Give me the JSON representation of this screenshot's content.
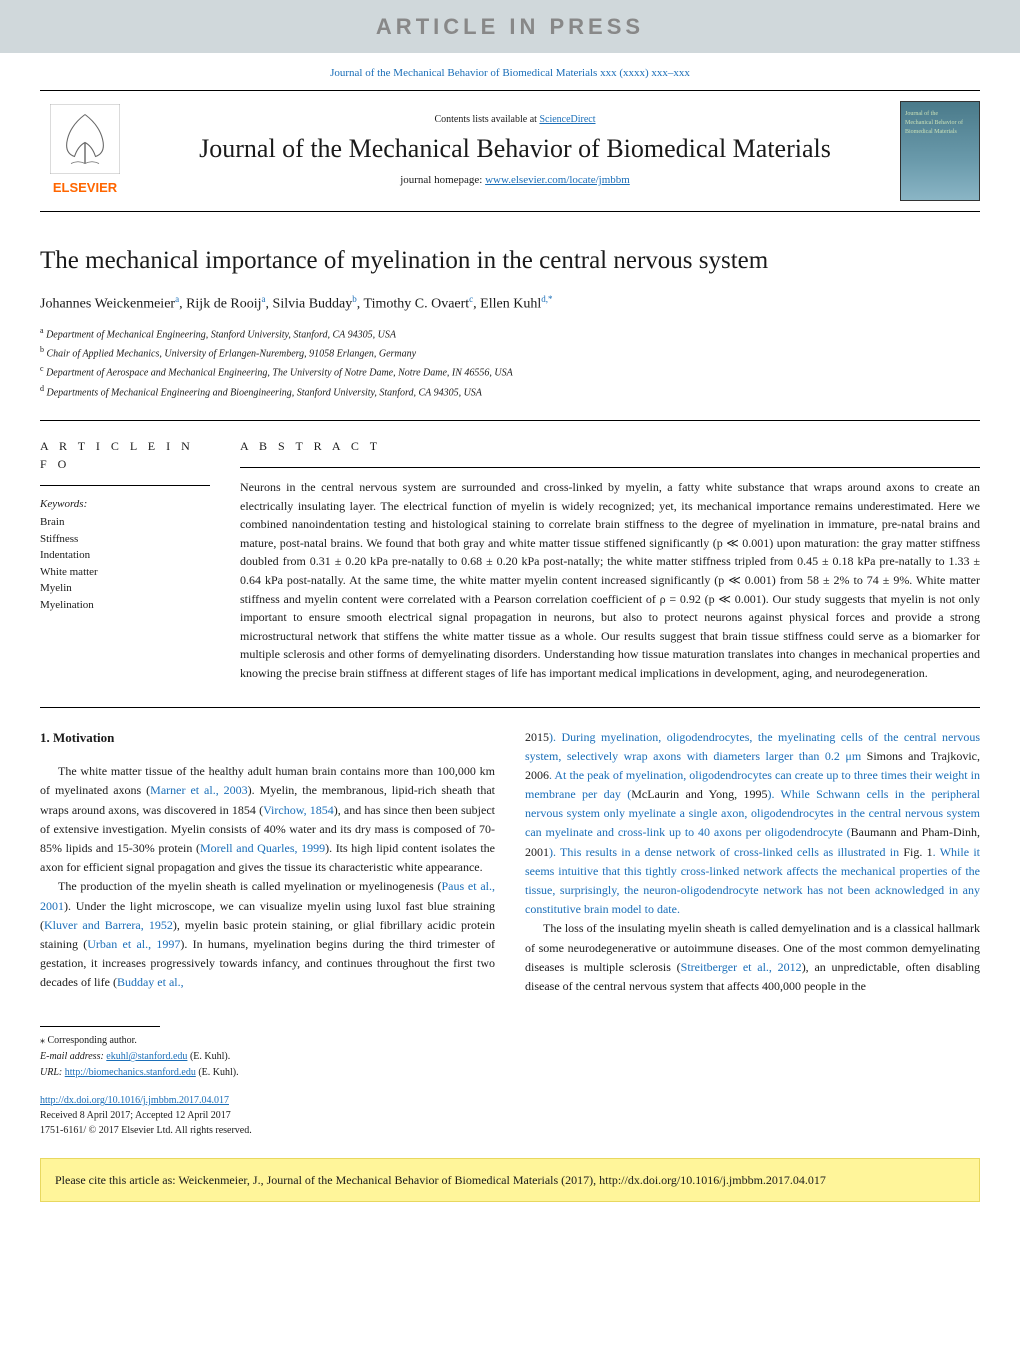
{
  "banner": "ARTICLE IN PRESS",
  "journal_ref": "Journal of the Mechanical Behavior of Biomedical Materials xxx (xxxx) xxx–xxx",
  "header": {
    "contents_prefix": "Contents lists available at ",
    "contents_link": "ScienceDirect",
    "journal_name": "Journal of the Mechanical Behavior of Biomedical Materials",
    "homepage_prefix": "journal homepage: ",
    "homepage_link": "www.elsevier.com/locate/jmbbm",
    "elsevier_label": "ELSEVIER",
    "cover_text1": "Journal of the",
    "cover_text2": "Mechanical Behavior of",
    "cover_text3": "Biomedical Materials"
  },
  "title": "The mechanical importance of myelination in the central nervous system",
  "authors": [
    {
      "name": "Johannes Weickenmeier",
      "aff": "a"
    },
    {
      "name": "Rijk de Rooij",
      "aff": "a"
    },
    {
      "name": "Silvia Budday",
      "aff": "b"
    },
    {
      "name": "Timothy C. Ovaert",
      "aff": "c"
    },
    {
      "name": "Ellen Kuhl",
      "aff": "d,*"
    }
  ],
  "affiliations": [
    {
      "sup": "a",
      "text": "Department of Mechanical Engineering, Stanford University, Stanford, CA 94305, USA"
    },
    {
      "sup": "b",
      "text": "Chair of Applied Mechanics, University of Erlangen-Nuremberg, 91058 Erlangen, Germany"
    },
    {
      "sup": "c",
      "text": "Department of Aerospace and Mechanical Engineering, The University of Notre Dame, Notre Dame, IN 46556, USA"
    },
    {
      "sup": "d",
      "text": "Departments of Mechanical Engineering and Bioengineering, Stanford University, Stanford, CA 94305, USA"
    }
  ],
  "info_head": "A R T I C L E  I N F O",
  "abstract_head": "A B S T R A C T",
  "keywords_label": "Keywords:",
  "keywords": [
    "Brain",
    "Stiffness",
    "Indentation",
    "White matter",
    "Myelin",
    "Myelination"
  ],
  "abstract": "Neurons in the central nervous system are surrounded and cross-linked by myelin, a fatty white substance that wraps around axons to create an electrically insulating layer. The electrical function of myelin is widely recognized; yet, its mechanical importance remains underestimated. Here we combined nanoindentation testing and histological staining to correlate brain stiffness to the degree of myelination in immature, pre-natal brains and mature, post-natal brains. We found that both gray and white matter tissue stiffened significantly (p ≪ 0.001) upon maturation: the gray matter stiffness doubled from 0.31 ± 0.20 kPa pre-natally to 0.68 ± 0.20 kPa post-natally; the white matter stiffness tripled from 0.45 ± 0.18 kPa pre-natally to 1.33 ± 0.64 kPa post-natally. At the same time, the white matter myelin content increased significantly (p ≪ 0.001) from 58 ± 2% to 74 ± 9%. White matter stiffness and myelin content were correlated with a Pearson correlation coefficient of ρ = 0.92 (p ≪ 0.001). Our study suggests that myelin is not only important to ensure smooth electrical signal propagation in neurons, but also to protect neurons against physical forces and provide a strong microstructural network that stiffens the white matter tissue as a whole. Our results suggest that brain tissue stiffness could serve as a biomarker for multiple sclerosis and other forms of demyelinating disorders. Understanding how tissue maturation translates into changes in mechanical properties and knowing the precise brain stiffness at different stages of life has important medical implications in development, aging, and neurodegeneration.",
  "motivation_head": "1. Motivation",
  "col1_p1_parts": [
    "The white matter tissue of the healthy adult human brain contains more than 100,000 km of myelinated axons (",
    "Marner et al., 2003",
    "). Myelin, the membranous, lipid-rich sheath that wraps around axons, was discovered in 1854 (",
    "Virchow, 1854",
    "), and has since then been subject of extensive investigation. Myelin consists of 40% water and its dry mass is composed of 70-85% lipids and 15-30% protein (",
    "Morell and Quarles, 1999",
    "). Its high lipid content isolates the axon for efficient signal propagation and gives the tissue its characteristic white appearance."
  ],
  "col1_p2_parts": [
    "The production of the myelin sheath is called myelination or myelinogenesis (",
    "Paus et al., 2001",
    "). Under the light microscope, we can visualize myelin using luxol fast blue straining (",
    "Kluver and Barrera, 1952",
    "), myelin basic protein staining, or glial fibrillary acidic protein staining (",
    "Urban et al., 1997",
    "). In humans, myelination begins during the third trimester of gestation, it increases progressively towards infancy, and continues throughout the first two decades of life (",
    "Budday et al.,"
  ],
  "col2_p1_parts": [
    "2015",
    "). During myelination, oligodendrocytes, the myelinating cells of the central nervous system, selectively wrap axons with diameters larger than 0.2 μm ",
    "Simons and Trajkovic, 2006",
    ". At the peak of myelination, oligodendrocytes can create up to three times their weight in membrane per day (",
    "McLaurin and Yong, 1995",
    "). While Schwann cells in the peripheral nervous system only myelinate a single axon, oligodendrocytes in the central nervous system can myelinate and cross-link up to 40 axons per oligodendrocyte (",
    "Baumann and Pham-Dinh, 2001",
    "). This results in a dense network of cross-linked cells as illustrated in ",
    "Fig. 1",
    ". While it seems intuitive that this tightly cross-linked network affects the mechanical properties of the tissue, surprisingly, the neuron-oligodendrocyte network has not been acknowledged in any constitutive brain model to date."
  ],
  "col2_p2_parts": [
    "The loss of the insulating myelin sheath is called demyelination and is a classical hallmark of some neurodegenerative or autoimmune diseases. One of the most common demyelinating diseases is multiple sclerosis (",
    "Streitberger et al., 2012",
    "), an unpredictable, often disabling disease of the central nervous system that affects 400,000 people in the"
  ],
  "corr": {
    "label": "⁎ Corresponding author.",
    "email_label": "E-mail address: ",
    "email": "ekuhl@stanford.edu",
    "email_suffix": " (E. Kuhl).",
    "url_label": "URL: ",
    "url": "http://biomechanics.stanford.edu",
    "url_suffix": " (E. Kuhl)."
  },
  "doi": {
    "link": "http://dx.doi.org/10.1016/j.jmbbm.2017.04.017",
    "received": "Received 8 April 2017; Accepted 12 April 2017",
    "copyright": "1751-6161/ © 2017 Elsevier Ltd. All rights reserved."
  },
  "cite": "Please cite this article as: Weickenmeier, J., Journal of the Mechanical Behavior of Biomedical Materials (2017), http://dx.doi.org/10.1016/j.jmbbm.2017.04.017",
  "colors": {
    "banner_bg": "#d0d8db",
    "banner_fg": "#888888",
    "link": "#1a6eb8",
    "elsevier": "#ff6600",
    "cite_bg": "#fff59a"
  }
}
